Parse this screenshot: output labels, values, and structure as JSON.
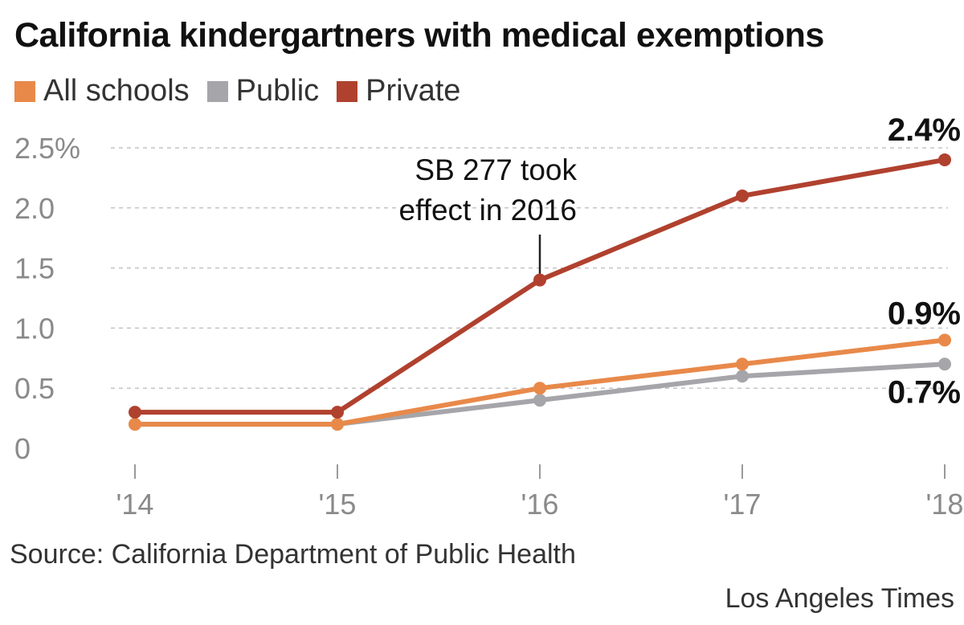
{
  "title": "California kindergartners with medical exemptions",
  "legend": [
    {
      "label": "All schools",
      "color": "#e8894a"
    },
    {
      "label": "Public",
      "color": "#a5a5aa"
    },
    {
      "label": "Private",
      "color": "#b0412e"
    }
  ],
  "source": "Source: California Department of Public Health",
  "credit": "Los Angeles Times",
  "chart_data": {
    "type": "line",
    "categories": [
      "'14",
      "'15",
      "'16",
      "'17",
      "'18"
    ],
    "series": [
      {
        "name": "Public",
        "values": [
          0.2,
          0.2,
          0.4,
          0.6,
          0.7
        ],
        "color": "#a5a5aa"
      },
      {
        "name": "All schools",
        "values": [
          0.2,
          0.2,
          0.5,
          0.7,
          0.9
        ],
        "color": "#e8894a"
      },
      {
        "name": "Private",
        "values": [
          0.3,
          0.3,
          1.4,
          2.1,
          2.4
        ],
        "color": "#b0412e"
      }
    ],
    "yticks": [
      {
        "value": 0,
        "label": "0"
      },
      {
        "value": 0.5,
        "label": "0.5"
      },
      {
        "value": 1.0,
        "label": "1.0"
      },
      {
        "value": 1.5,
        "label": "1.5"
      },
      {
        "value": 2.0,
        "label": "2.0"
      },
      {
        "value": 2.5,
        "label": "2.5%"
      }
    ],
    "ylim": [
      0,
      2.5
    ],
    "grid": true,
    "end_labels": [
      {
        "series": "Private",
        "text": "2.4%"
      },
      {
        "series": "All schools",
        "text": "0.9%"
      },
      {
        "series": "Public",
        "text": "0.7%"
      }
    ],
    "annotation": {
      "category": "'16",
      "series": "Private",
      "lines": [
        "SB 277 took",
        "effect in 2016"
      ]
    }
  }
}
